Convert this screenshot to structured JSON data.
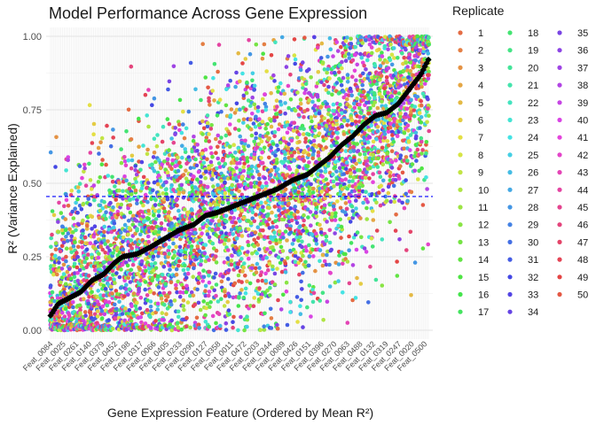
{
  "chart_data": {
    "type": "scatter",
    "title": "Model Performance Across Gene Expression",
    "xlabel": "Gene Expression Feature (Ordered by Mean R²)",
    "ylabel": "R² (Variance Explained)",
    "ylim": [
      0,
      1
    ],
    "y_ticks": [
      "0.00",
      "0.25",
      "0.50",
      "0.75",
      "1.00"
    ],
    "y_tick_values": [
      0,
      0.25,
      0.5,
      0.75,
      1.0
    ],
    "x_tick_labels": [
      "Feat_0084",
      "Feat_0025",
      "Feat_0261",
      "Feat_0140",
      "Feat_0379",
      "Feat_0452",
      "Feat_0198",
      "Feat_0317",
      "Feat_0066",
      "Feat_0405",
      "Feat_0233",
      "Feat_0290",
      "Feat_0127",
      "Feat_0358",
      "Feat_0011",
      "Feat_0472",
      "Feat_0203",
      "Feat_0344",
      "Feat_0089",
      "Feat_0426",
      "Feat_0151",
      "Feat_0396",
      "Feat_0270",
      "Feat_0063",
      "Feat_0488",
      "Feat_0132",
      "Feat_0319",
      "Feat_0247",
      "Feat_0020",
      "Feat_0500"
    ],
    "x_grid": "one vertical gridline per feature",
    "grid": true,
    "legend_position": "right",
    "legend_title": "Replicate",
    "replicates": [
      "1",
      "2",
      "3",
      "4",
      "5",
      "6",
      "7",
      "8",
      "9",
      "10",
      "11",
      "12",
      "13",
      "14",
      "15",
      "16",
      "17",
      "18",
      "19",
      "20",
      "21",
      "22",
      "23",
      "24",
      "25",
      "26",
      "27",
      "28",
      "29",
      "30",
      "31",
      "32",
      "33",
      "34",
      "35",
      "36",
      "37",
      "38",
      "39",
      "40",
      "41",
      "42",
      "43",
      "44",
      "45",
      "46",
      "47",
      "48",
      "49",
      "50"
    ],
    "mean_r2_series": {
      "name": "Mean R²",
      "color": "#000000",
      "marker": "diamond",
      "n_features": 220,
      "y_at_rank_fraction": [
        [
          0.0,
          0.05
        ],
        [
          0.02,
          0.09
        ],
        [
          0.05,
          0.11
        ],
        [
          0.08,
          0.13
        ],
        [
          0.11,
          0.17
        ],
        [
          0.14,
          0.19
        ],
        [
          0.17,
          0.23
        ],
        [
          0.19,
          0.25
        ],
        [
          0.23,
          0.26
        ],
        [
          0.26,
          0.28
        ],
        [
          0.3,
          0.31
        ],
        [
          0.34,
          0.34
        ],
        [
          0.38,
          0.36
        ],
        [
          0.41,
          0.39
        ],
        [
          0.44,
          0.4
        ],
        [
          0.48,
          0.42
        ],
        [
          0.52,
          0.44
        ],
        [
          0.56,
          0.46
        ],
        [
          0.6,
          0.48
        ],
        [
          0.64,
          0.51
        ],
        [
          0.68,
          0.53
        ],
        [
          0.71,
          0.56
        ],
        [
          0.74,
          0.59
        ],
        [
          0.77,
          0.63
        ],
        [
          0.8,
          0.66
        ],
        [
          0.83,
          0.7
        ],
        [
          0.86,
          0.73
        ],
        [
          0.89,
          0.74
        ],
        [
          0.92,
          0.77
        ],
        [
          0.95,
          0.82
        ],
        [
          0.98,
          0.87
        ],
        [
          1.0,
          0.92
        ]
      ]
    },
    "reference_line": {
      "type": "hline",
      "y": 0.455,
      "color": "#0000ff",
      "linestyle": "dashed"
    },
    "point_spread": {
      "replicates_per_feature": 50,
      "min": 0.0,
      "max": 1.0,
      "note": "replicate R² values scattered around the feature mean"
    }
  }
}
